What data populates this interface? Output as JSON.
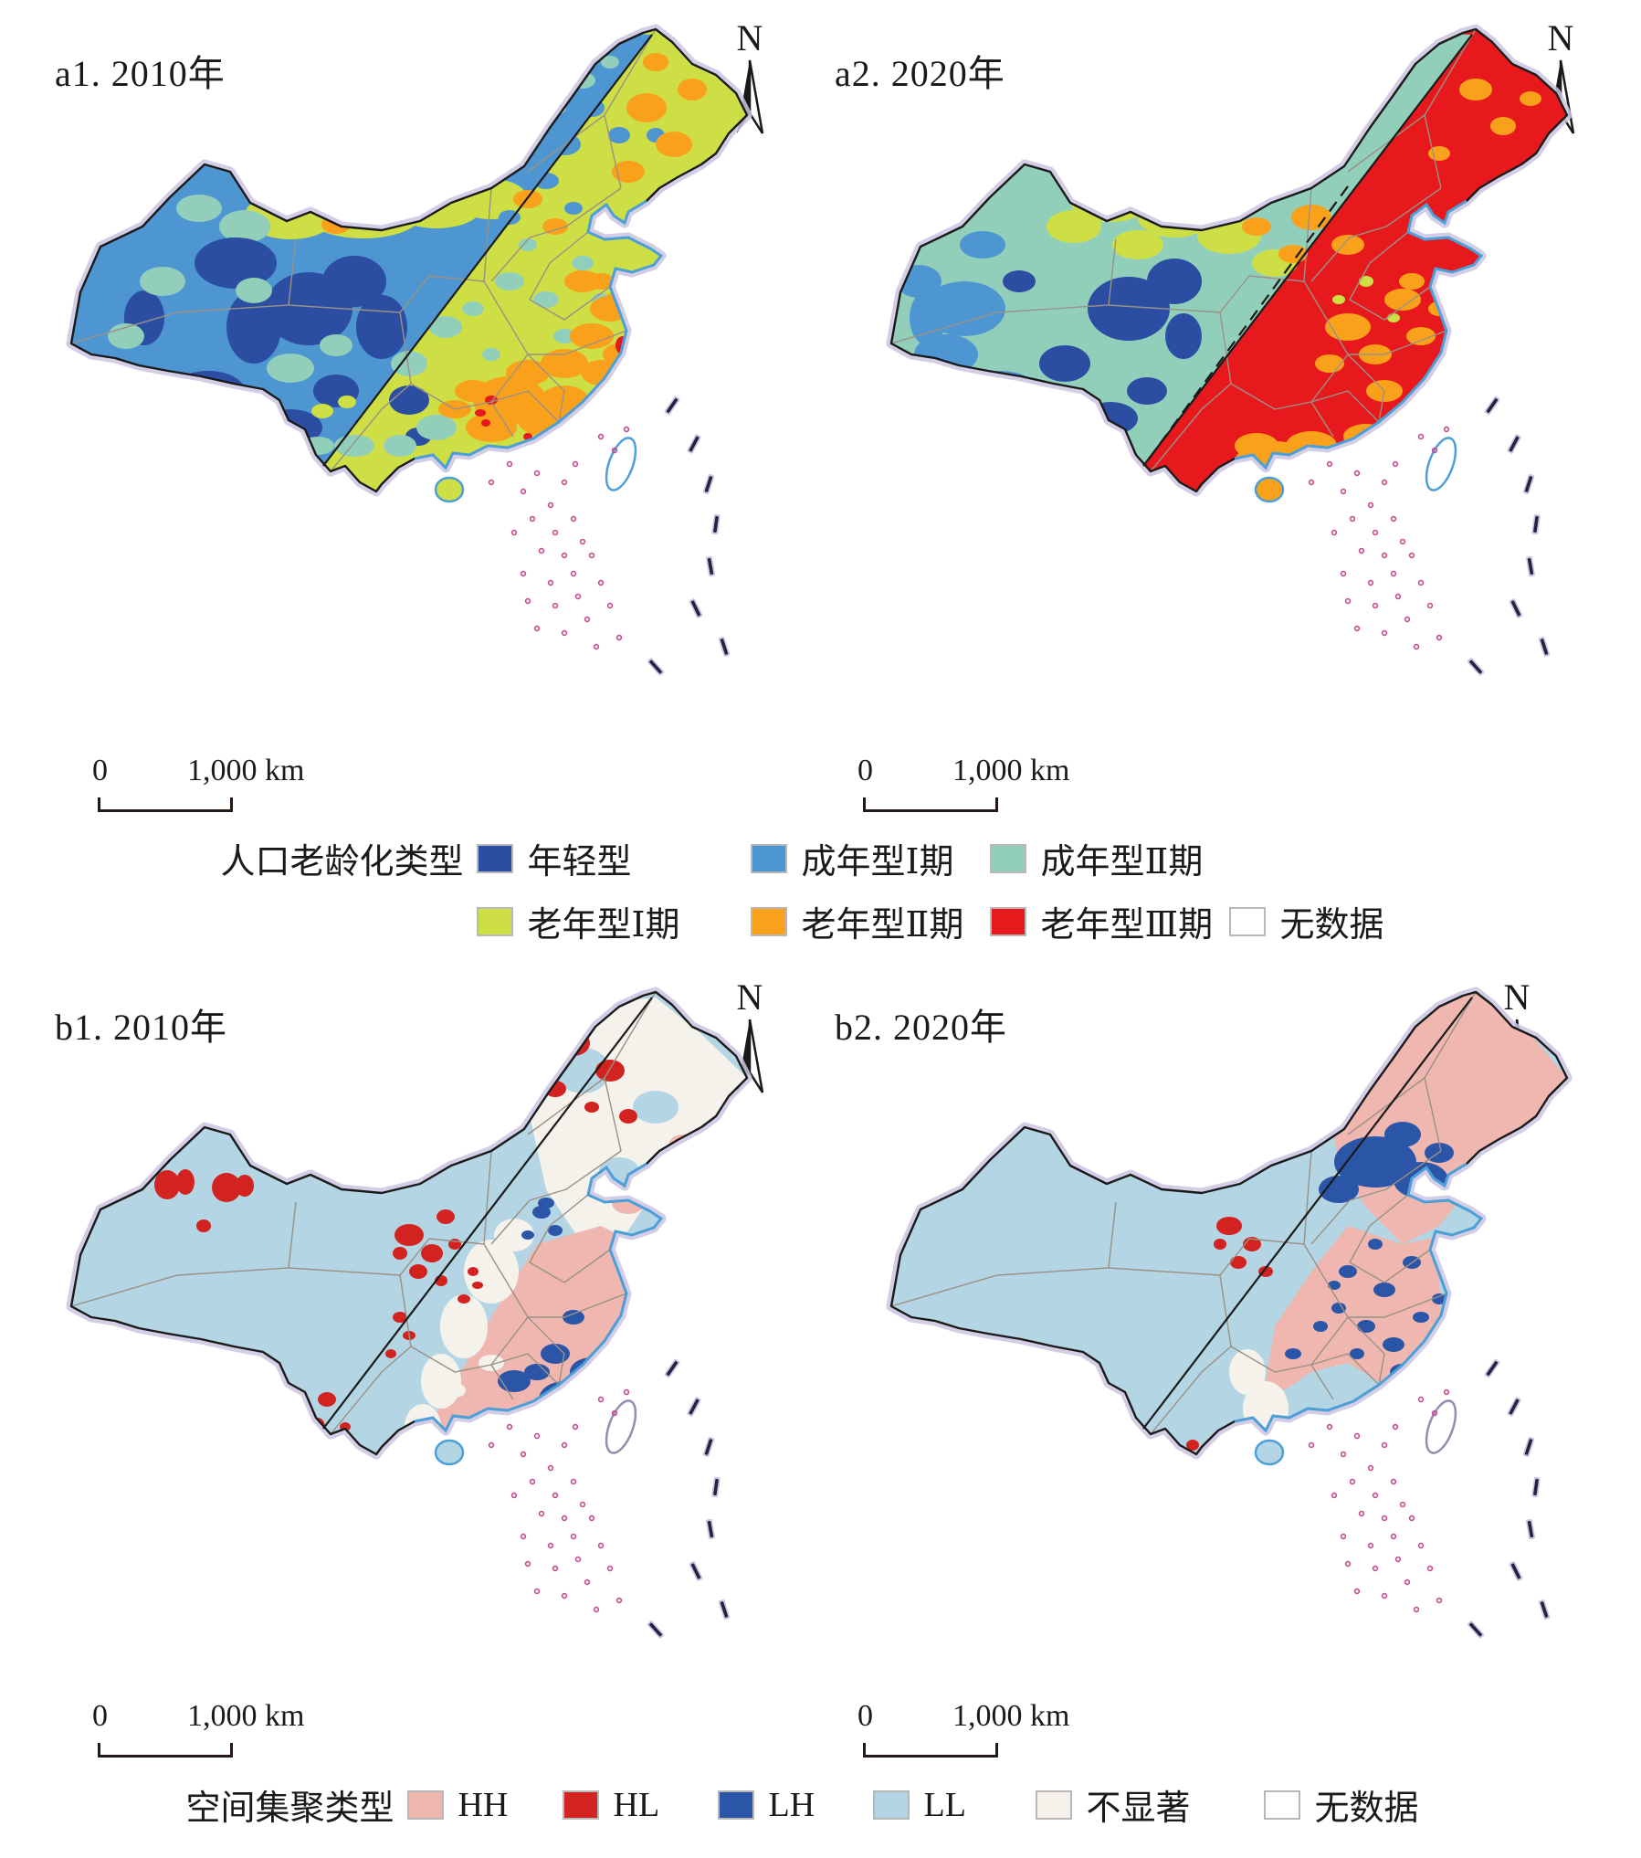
{
  "panels": [
    {
      "id": "a1",
      "title": "a1. 2010年",
      "north_label": "N",
      "scale_zero": "0",
      "scale_label": "1,000 km"
    },
    {
      "id": "a2",
      "title": "a2. 2020年",
      "north_label": "N",
      "scale_zero": "0",
      "scale_label": "1,000 km"
    },
    {
      "id": "b1",
      "title": "b1. 2010年",
      "north_label": "N",
      "scale_zero": "0",
      "scale_label": "1,000 km"
    },
    {
      "id": "b2",
      "title": "b2. 2020年",
      "north_label": "N",
      "scale_zero": "0",
      "scale_label": "1,000 km"
    }
  ],
  "legend_aging": {
    "title": "人口老龄化类型",
    "items": [
      {
        "key": "young",
        "label": "年轻型",
        "color": "#2B4EA2"
      },
      {
        "key": "adult1",
        "label": "成年型Ⅰ期",
        "color": "#4E96D2"
      },
      {
        "key": "adult2",
        "label": "成年型Ⅱ期",
        "color": "#92CFBB"
      },
      {
        "key": "old1",
        "label": "老年型Ⅰ期",
        "color": "#CEDF45"
      },
      {
        "key": "old2",
        "label": "老年型Ⅱ期",
        "color": "#F9A11B"
      },
      {
        "key": "old3",
        "label": "老年型Ⅲ期",
        "color": "#E8191C"
      },
      {
        "key": "nodata",
        "label": "无数据",
        "color": "#FFFFFF"
      }
    ]
  },
  "legend_cluster": {
    "title": "空间集聚类型",
    "items": [
      {
        "key": "HH",
        "label": "HH",
        "color": "#EFB7B0"
      },
      {
        "key": "HL",
        "label": "HL",
        "color": "#D32320"
      },
      {
        "key": "LH",
        "label": "LH",
        "color": "#2B55A7"
      },
      {
        "key": "LL",
        "label": "LL",
        "color": "#B3D5E4"
      },
      {
        "key": "ns",
        "label": "不显著",
        "color": "#F4F2EA"
      },
      {
        "key": "nodata2",
        "label": "无数据",
        "color": "#FFFFFF"
      }
    ]
  },
  "map_colors": {
    "national_border": "#1a1a1a",
    "halo": "#CBC4E2",
    "coastline": "#4D9FD8",
    "province_border": "#9a9186",
    "hu_line": "#1a1a1a",
    "island_dots": "#c84b90",
    "gray_patch": "#8C8C8C"
  }
}
